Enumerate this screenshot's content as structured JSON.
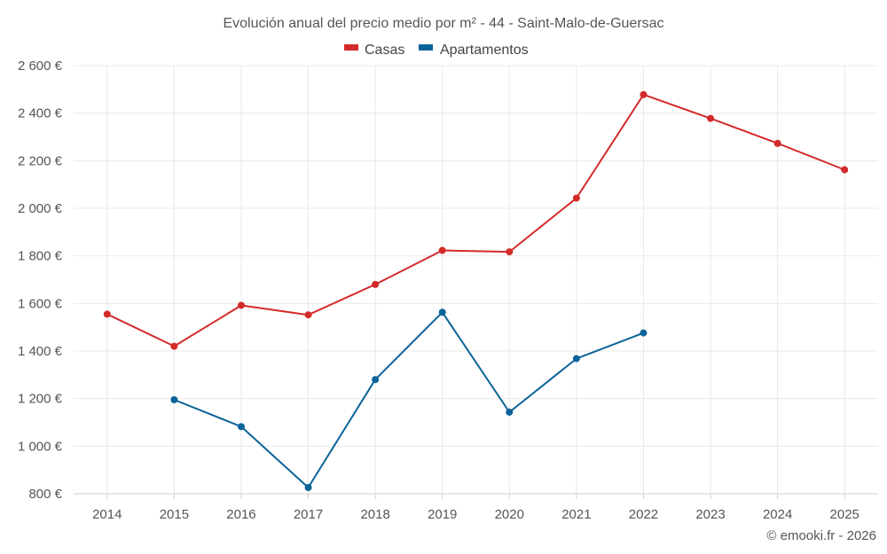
{
  "chart_data": {
    "type": "line",
    "title": "Evolución anual del precio medio por m² - 44 - Saint-Malo-de-Guersac",
    "categories": [
      "2014",
      "2015",
      "2016",
      "2017",
      "2018",
      "2019",
      "2020",
      "2021",
      "2022",
      "2023",
      "2024",
      "2025"
    ],
    "series": [
      {
        "name": "Casas",
        "color": "#d42a2a",
        "values": [
          1555,
          1420,
          1592,
          1552,
          1680,
          1823,
          1817,
          2043,
          2478,
          2378,
          2273,
          2162
        ]
      },
      {
        "name": "Apartamentos",
        "color": "#0b6399",
        "values": [
          null,
          1195,
          1082,
          826,
          1280,
          1563,
          1143,
          1368,
          1476,
          null,
          null,
          null
        ]
      }
    ],
    "ylim": [
      800,
      2600
    ],
    "yticks": [
      800,
      1000,
      1200,
      1400,
      1600,
      1800,
      2000,
      2200,
      2400,
      2600
    ],
    "ytick_labels": [
      "800 €",
      "1 000 €",
      "1 200 €",
      "1 400 €",
      "1 600 €",
      "1 800 €",
      "2 000 €",
      "2 200 €",
      "2 400 €",
      "2 600 €"
    ],
    "xlabel": "",
    "ylabel": "",
    "grid": true,
    "legend_position": "top-center"
  },
  "credit": "© emooki.fr - 2026"
}
